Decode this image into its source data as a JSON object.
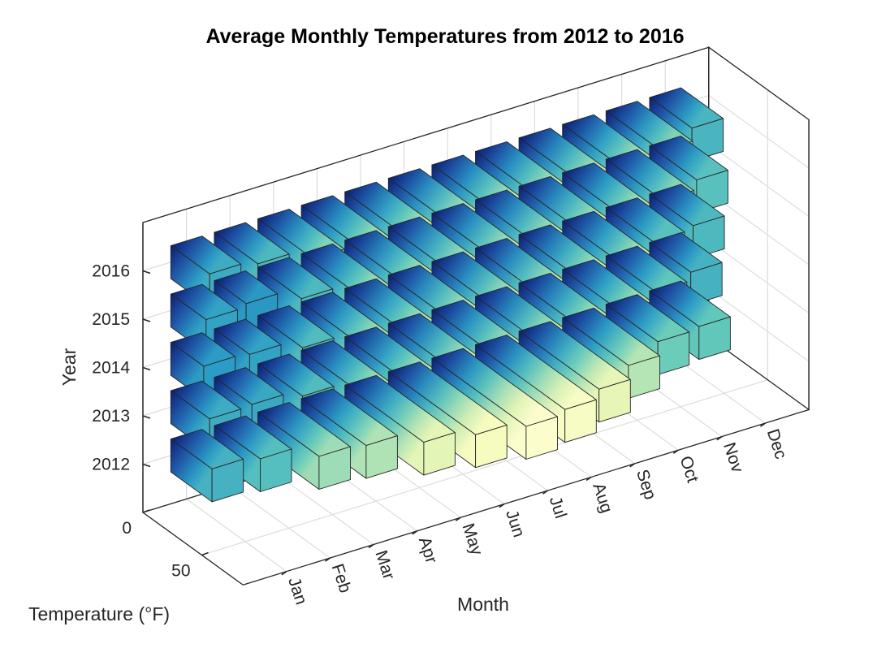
{
  "chart_data": {
    "type": "bar3",
    "title": "Average Monthly Temperatures from 2012 to 2016",
    "xlabel": "Month",
    "ylabel": "Year",
    "zlabel": "Temperature (°F)",
    "categories": [
      "Jan",
      "Feb",
      "Mar",
      "Apr",
      "May",
      "Jun",
      "Jul",
      "Aug",
      "Sep",
      "Oct",
      "Nov",
      "Dec"
    ],
    "years": [
      "2012",
      "2013",
      "2014",
      "2015",
      "2016"
    ],
    "zticks": [
      "0",
      "50"
    ],
    "series": [
      {
        "name": "2012",
        "values": [
          35,
          39,
          52,
          55,
          67,
          74,
          80,
          76,
          68,
          56,
          44,
          42
        ]
      },
      {
        "name": "2013",
        "values": [
          33,
          32,
          38,
          52,
          63,
          72,
          78,
          74,
          66,
          56,
          42,
          35
        ]
      },
      {
        "name": "2014",
        "values": [
          28,
          30,
          38,
          53,
          63,
          72,
          75,
          74,
          67,
          58,
          40,
          37
        ]
      },
      {
        "name": "2015",
        "values": [
          30,
          27,
          37,
          52,
          65,
          70,
          76,
          74,
          70,
          56,
          48,
          40
        ]
      },
      {
        "name": "2016",
        "values": [
          33,
          37,
          47,
          53,
          63,
          73,
          79,
          77,
          70,
          58,
          47,
          36
        ]
      }
    ],
    "zlim": [
      0,
      85
    ],
    "grid": true,
    "colormap": [
      "#0c1e73",
      "#1f58a8",
      "#2c9dc6",
      "#63c9bb",
      "#b9e6b4",
      "#f3fab8",
      "#ffffd9"
    ]
  }
}
